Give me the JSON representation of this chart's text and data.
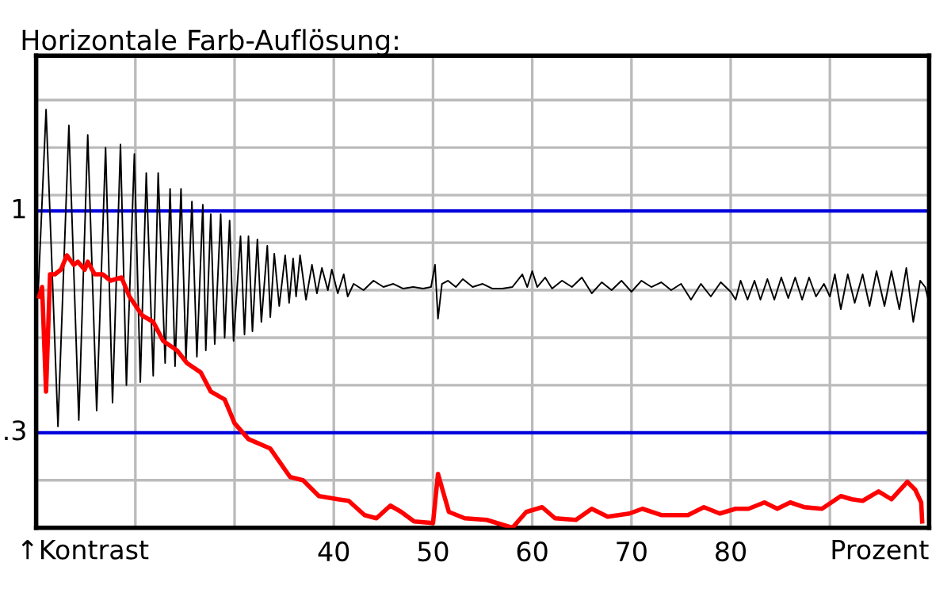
{
  "chart_data": {
    "type": "line",
    "title": "Horizontale Farb-Auflösung:",
    "xlabel": "Prozent",
    "annotations": [
      "↑Kontrast"
    ],
    "xlim": [
      10,
      100
    ],
    "ylim": [
      0,
      1.49
    ],
    "xticks": [
      {
        "value": 20,
        "label": null
      },
      {
        "value": 30,
        "label": null
      },
      40,
      50,
      60,
      70,
      80,
      {
        "value": 90,
        "label": null
      }
    ],
    "yticks": [
      {
        "value": 0.15,
        "label": null
      },
      {
        "value": 0.3,
        "label": null
      },
      {
        "value": 0.45,
        "label": null
      },
      {
        "value": 0.6,
        "label": null
      },
      {
        "value": 0.75,
        "label": null
      },
      {
        "value": 0.9,
        "label": null
      },
      {
        "value": 1.05,
        "label": null
      },
      {
        "value": 1.2,
        "label": null
      },
      {
        "value": 1.35,
        "label": null
      }
    ],
    "grid": true,
    "legend": false,
    "ref_lines": [
      {
        "axis": "y",
        "value": 1,
        "label": "1",
        "color": "#0000dd"
      },
      {
        "axis": "y",
        "value": 0.3,
        "label": ".3",
        "color": "#0000dd"
      }
    ],
    "series": [
      {
        "color": "#000000",
        "x": [
          10.2,
          11.0,
          12.2,
          13.3,
          14.3,
          15.2,
          16.1,
          17.0,
          17.7,
          18.5,
          19.1,
          19.9,
          20.5,
          21.1,
          21.8,
          22.3,
          23.0,
          23.5,
          24.0,
          24.6,
          25.1,
          25.7,
          26.2,
          26.8,
          27.1,
          27.6,
          28.0,
          28.6,
          29.0,
          29.5,
          29.9,
          30.6,
          31.0,
          31.4,
          31.8,
          32.3,
          32.7,
          33.3,
          33.6,
          34.0,
          34.5,
          35.1,
          35.5,
          35.9,
          36.2,
          36.6,
          37.2,
          37.8,
          38.3,
          38.8,
          39.4,
          39.8,
          40.4,
          41.0,
          41.4,
          42,
          43,
          44,
          45,
          46,
          47,
          48,
          49,
          49.8,
          50.2,
          50.5,
          50.9,
          51.5,
          52.3,
          53,
          54,
          55,
          56,
          57,
          58,
          59,
          59.5,
          60,
          60.5,
          61.3,
          62,
          63,
          64,
          65,
          66,
          67,
          68,
          69,
          70,
          71,
          72,
          73,
          74,
          75,
          76,
          77,
          78,
          79,
          80,
          80.5,
          81,
          81.7,
          82.4,
          83,
          83.7,
          84.4,
          85.1,
          85.8,
          86.5,
          87.2,
          87.9,
          88.6,
          89.4,
          90,
          90.5,
          91.1,
          91.8,
          92.5,
          93.3,
          94,
          94.7,
          95.5,
          96.2,
          97,
          97.7,
          98.4,
          99.1,
          99.6,
          100
        ],
        "values": [
          0.74,
          1.32,
          0.32,
          1.27,
          0.34,
          1.24,
          0.37,
          1.2,
          0.395,
          1.21,
          0.45,
          1.18,
          0.46,
          1.12,
          0.48,
          1.12,
          0.52,
          1.07,
          0.51,
          1.07,
          0.53,
          1.03,
          0.54,
          1.02,
          0.56,
          0.99,
          0.58,
          0.99,
          0.6,
          0.97,
          0.59,
          0.92,
          0.61,
          0.92,
          0.62,
          0.91,
          0.65,
          0.89,
          0.665,
          0.865,
          0.7,
          0.86,
          0.71,
          0.85,
          0.73,
          0.86,
          0.72,
          0.83,
          0.74,
          0.82,
          0.75,
          0.815,
          0.74,
          0.8,
          0.73,
          0.77,
          0.75,
          0.78,
          0.76,
          0.77,
          0.755,
          0.76,
          0.755,
          0.76,
          0.83,
          0.66,
          0.77,
          0.78,
          0.76,
          0.785,
          0.76,
          0.77,
          0.755,
          0.755,
          0.76,
          0.8,
          0.76,
          0.81,
          0.76,
          0.79,
          0.755,
          0.78,
          0.76,
          0.79,
          0.74,
          0.775,
          0.75,
          0.78,
          0.745,
          0.78,
          0.76,
          0.775,
          0.75,
          0.77,
          0.72,
          0.77,
          0.73,
          0.775,
          0.745,
          0.72,
          0.78,
          0.72,
          0.78,
          0.72,
          0.785,
          0.72,
          0.79,
          0.725,
          0.79,
          0.72,
          0.79,
          0.73,
          0.77,
          0.73,
          0.8,
          0.69,
          0.8,
          0.71,
          0.8,
          0.7,
          0.81,
          0.7,
          0.81,
          0.69,
          0.82,
          0.65,
          0.78,
          0.76,
          0.71
        ]
      },
      {
        "color": "#ff0000",
        "x": [
          10.3,
          10.6,
          11.0,
          11.4,
          11.9,
          12.5,
          13.1,
          13.8,
          14.2,
          14.9,
          15.2,
          15.9,
          16.7,
          17.5,
          18.6,
          19.4,
          20.7,
          21.8,
          22.8,
          24.2,
          25.2,
          26.6,
          27.6,
          29.0,
          30.0,
          31.4,
          33.6,
          35.6,
          36.9,
          38.5,
          40.4,
          41.5,
          43.1,
          44.3,
          45.7,
          46.8,
          48.1,
          50.0,
          50.5,
          51.6,
          53.2,
          55.4,
          58.0,
          59.4,
          61.0,
          62.3,
          64.4,
          66.0,
          67.6,
          69.8,
          71.1,
          73.0,
          75.7,
          77.3,
          78.9,
          80.5,
          81.8,
          83.4,
          84.7,
          86.0,
          87.4,
          89.2,
          91.1,
          92.2,
          93.3,
          94.9,
          96.2,
          97.8,
          98.6,
          99.2,
          99.3
        ],
        "values": [
          0.73,
          0.76,
          0.43,
          0.8,
          0.8,
          0.815,
          0.86,
          0.83,
          0.84,
          0.815,
          0.84,
          0.8,
          0.8,
          0.78,
          0.79,
          0.73,
          0.67,
          0.65,
          0.59,
          0.56,
          0.52,
          0.49,
          0.43,
          0.405,
          0.33,
          0.28,
          0.25,
          0.16,
          0.15,
          0.1,
          0.09,
          0.085,
          0.04,
          0.03,
          0.07,
          0.05,
          0.02,
          0.015,
          0.17,
          0.05,
          0.03,
          0.025,
          0.0,
          0.05,
          0.065,
          0.03,
          0.025,
          0.06,
          0.035,
          0.045,
          0.06,
          0.04,
          0.04,
          0.065,
          0.045,
          0.06,
          0.06,
          0.08,
          0.06,
          0.08,
          0.065,
          0.06,
          0.1,
          0.09,
          0.085,
          0.115,
          0.09,
          0.145,
          0.12,
          0.08,
          0.02
        ]
      }
    ]
  }
}
